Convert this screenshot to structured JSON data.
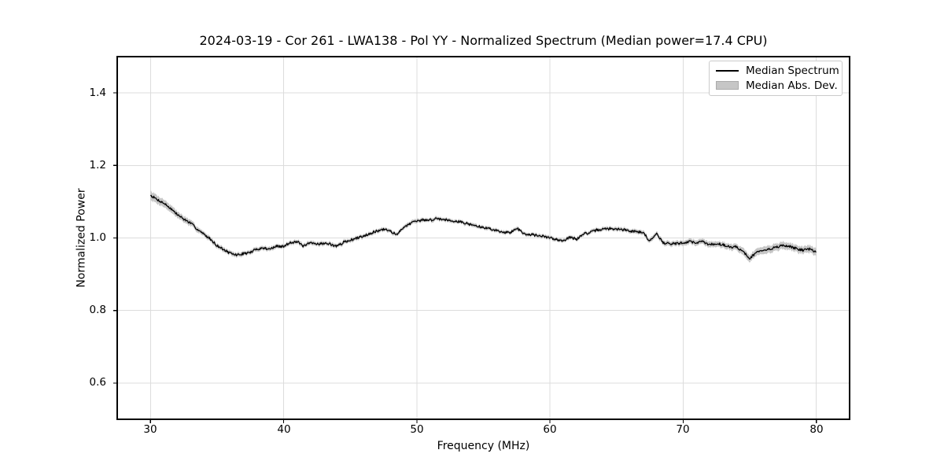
{
  "chart_data": {
    "type": "line",
    "title": "2024-03-19 - Cor 261 - LWA138 - Pol YY - Normalized Spectrum (Median power=17.4 CPU)",
    "xlabel": "Frequency (MHz)",
    "ylabel": "Normalized Power",
    "xlim": [
      27.5,
      82.5
    ],
    "ylim": [
      0.5,
      1.5
    ],
    "xticks": [
      30,
      40,
      50,
      60,
      70,
      80
    ],
    "xtick_labels": [
      "30",
      "40",
      "50",
      "60",
      "70",
      "80"
    ],
    "yticks": [
      1.4,
      1.2,
      1.0,
      0.8,
      0.6
    ],
    "ytick_labels": [
      "1.4",
      "1.2",
      "1.0",
      "0.8",
      "0.6"
    ],
    "grid": true,
    "legend": {
      "position": "upper right",
      "entries": [
        {
          "label": "Median Spectrum",
          "type": "line",
          "color": "#000000"
        },
        {
          "label": "Median Abs. Dev.",
          "type": "patch",
          "color": "#c6c6c6"
        }
      ]
    },
    "series": [
      {
        "name": "Median Spectrum",
        "x": [
          30.0,
          30.5,
          31.0,
          31.5,
          32.0,
          32.5,
          33.0,
          33.5,
          34.0,
          34.5,
          35.0,
          35.5,
          36.0,
          36.5,
          37.0,
          37.5,
          38.0,
          38.5,
          39.0,
          39.5,
          40.0,
          40.5,
          41.0,
          41.5,
          42.0,
          42.5,
          43.0,
          43.5,
          44.0,
          44.5,
          45.0,
          45.5,
          46.0,
          46.5,
          47.0,
          47.5,
          48.0,
          48.5,
          49.0,
          49.5,
          50.0,
          50.5,
          51.0,
          51.5,
          52.0,
          52.5,
          53.0,
          53.5,
          54.0,
          54.5,
          55.0,
          55.5,
          56.0,
          56.5,
          57.0,
          57.5,
          58.0,
          58.5,
          59.0,
          59.5,
          60.0,
          60.5,
          61.0,
          61.5,
          62.0,
          62.5,
          63.0,
          63.5,
          64.0,
          64.5,
          65.0,
          65.5,
          66.0,
          66.5,
          67.0,
          67.5,
          68.0,
          68.5,
          69.0,
          69.5,
          70.0,
          70.5,
          71.0,
          71.5,
          72.0,
          72.5,
          73.0,
          73.5,
          74.0,
          74.5,
          75.0,
          75.5,
          76.0,
          76.5,
          77.0,
          77.5,
          78.0,
          78.5,
          79.0,
          79.5,
          80.0
        ],
        "y": [
          1.118,
          1.106,
          1.096,
          1.082,
          1.065,
          1.052,
          1.041,
          1.025,
          1.01,
          0.997,
          0.979,
          0.968,
          0.957,
          0.953,
          0.957,
          0.96,
          0.97,
          0.972,
          0.97,
          0.977,
          0.976,
          0.988,
          0.99,
          0.977,
          0.986,
          0.984,
          0.985,
          0.983,
          0.977,
          0.988,
          0.994,
          0.999,
          1.006,
          1.013,
          1.019,
          1.023,
          1.02,
          1.008,
          1.03,
          1.04,
          1.046,
          1.05,
          1.049,
          1.054,
          1.051,
          1.049,
          1.046,
          1.043,
          1.037,
          1.033,
          1.028,
          1.026,
          1.02,
          1.017,
          1.014,
          1.028,
          1.012,
          1.01,
          1.007,
          1.004,
          1.0,
          0.996,
          0.993,
          1.002,
          0.996,
          1.012,
          1.014,
          1.022,
          1.024,
          1.026,
          1.024,
          1.023,
          1.019,
          1.018,
          1.015,
          0.991,
          1.014,
          0.986,
          0.985,
          0.984,
          0.987,
          0.99,
          0.987,
          0.99,
          0.981,
          0.985,
          0.981,
          0.975,
          0.976,
          0.962,
          0.944,
          0.96,
          0.964,
          0.97,
          0.975,
          0.979,
          0.976,
          0.971,
          0.966,
          0.969,
          0.962
        ]
      }
    ],
    "mad_band": {
      "name": "Median Abs. Dev.",
      "x": [
        30,
        32,
        35,
        45,
        55,
        63,
        67,
        70,
        73,
        75,
        80
      ],
      "half_width": [
        0.012,
        0.009,
        0.006,
        0.0055,
        0.005,
        0.005,
        0.006,
        0.007,
        0.008,
        0.01,
        0.01
      ]
    },
    "noise": {
      "amplitude": 0.0035,
      "seed": 7,
      "step_mhz": 0.05
    },
    "colors": {
      "line": "#000000",
      "band": "#c6c6c6",
      "grid": "#dcdcdc",
      "spine": "#000000",
      "legend_border": "#cbcbcb",
      "background": "#ffffff"
    }
  }
}
